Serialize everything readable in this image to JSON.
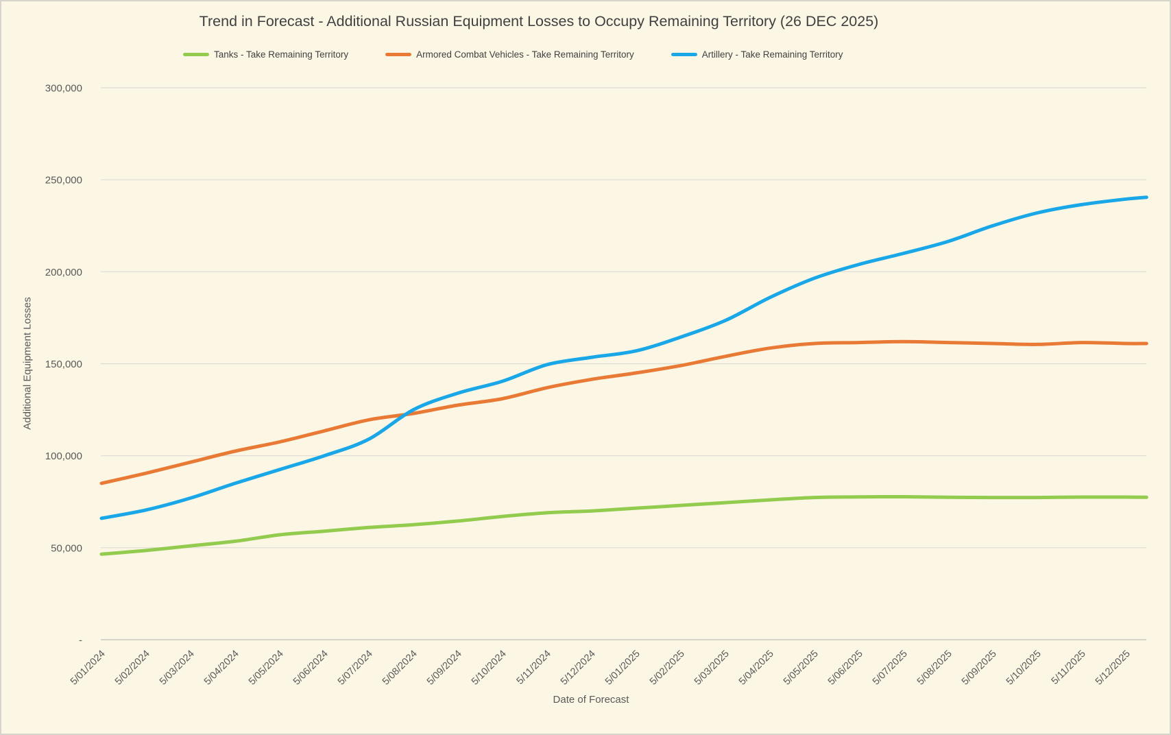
{
  "colors": {
    "background": "#FCF7E5",
    "border": "#D6D5CB",
    "grid": "#DCDBD3",
    "axis": "#C9C8BF",
    "tick_text": "#595959",
    "title_text": "#404040"
  },
  "chart_data": {
    "type": "line",
    "title": "Trend in Forecast - Additional Russian Equipment Losses to Occupy Remaining Territory (26 DEC 2025)",
    "xlabel": "Date of Forecast",
    "ylabel": "Additional Equipment Losses",
    "ylim": [
      0,
      300000
    ],
    "y_tick_step": 50000,
    "y_tick_labels": [
      "-",
      "50,000",
      "100,000",
      "150,000",
      "200,000",
      "250,000",
      "300,000"
    ],
    "grid": "horizontal",
    "legend_position": "top",
    "categories": [
      "5/01/2024",
      "5/02/2024",
      "5/03/2024",
      "5/04/2024",
      "5/05/2024",
      "5/06/2024",
      "5/07/2024",
      "5/08/2024",
      "5/09/2024",
      "5/10/2024",
      "5/11/2024",
      "5/12/2024",
      "5/01/2025",
      "5/02/2025",
      "5/03/2025",
      "5/04/2025",
      "5/05/2025",
      "5/06/2025",
      "5/07/2025",
      "5/08/2025",
      "5/09/2025",
      "5/10/2025",
      "5/11/2025",
      "5/12/2025"
    ],
    "x_month_index": [
      0,
      1,
      2,
      3,
      4,
      5,
      6,
      7,
      8,
      9,
      10,
      11,
      12,
      13,
      14,
      15,
      16,
      17,
      18,
      19,
      20,
      21,
      22,
      23,
      23.45
    ],
    "series": [
      {
        "name": "Tanks - Take Remaining Territory",
        "color": "#92CB4D",
        "values": [
          46500,
          48500,
          51000,
          53500,
          57000,
          59000,
          61000,
          62500,
          64500,
          67000,
          69000,
          70000,
          71500,
          73000,
          74500,
          76000,
          77300,
          77600,
          77700,
          77400,
          77300,
          77300,
          77500,
          77500,
          77400
        ]
      },
      {
        "name": "Armored Combat Vehicles - Take Remaining Territory",
        "color": "#E87A36",
        "values": [
          85000,
          90500,
          96500,
          102500,
          107500,
          113500,
          119500,
          123000,
          127500,
          131000,
          137000,
          141500,
          145000,
          149000,
          154000,
          158500,
          161000,
          161500,
          162000,
          161500,
          161000,
          160500,
          161500,
          161000,
          161000
        ]
      },
      {
        "name": "Artillery - Take Remaining Territory",
        "color": "#1AA7E8",
        "values": [
          66000,
          70500,
          77000,
          85000,
          92500,
          100000,
          109000,
          125000,
          134000,
          140500,
          149500,
          153500,
          157000,
          164500,
          173500,
          186000,
          196500,
          204000,
          210000,
          216500,
          225000,
          232000,
          236500,
          239500,
          240500
        ]
      }
    ]
  }
}
